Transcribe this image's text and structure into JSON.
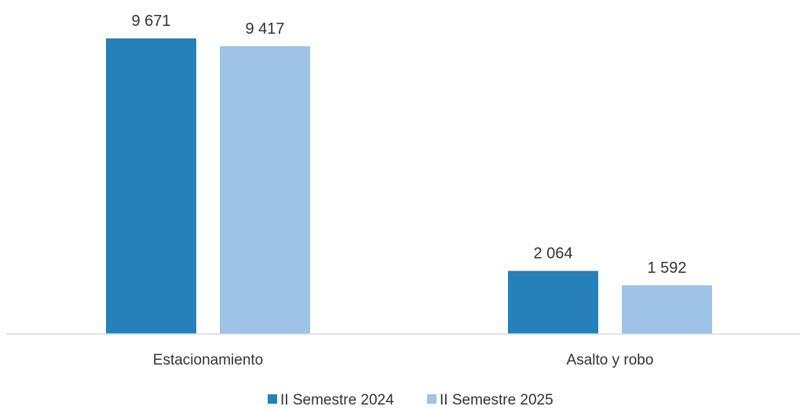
{
  "chart_data": {
    "type": "bar",
    "title": "",
    "xlabel": "",
    "ylabel": "",
    "categories": [
      "Estacionamiento",
      "Asalto y robo"
    ],
    "series": [
      {
        "name": "II Semestre 2024",
        "values": [
          9671,
          2064
        ],
        "labels": [
          "9 671",
          "2 064"
        ],
        "color": "#2680BA"
      },
      {
        "name": "II Semestre 2025",
        "values": [
          9417,
          1592
        ],
        "labels": [
          "9 417",
          "1 592"
        ],
        "color": "#9DC3E6"
      }
    ],
    "ylim": [
      0,
      9671
    ],
    "grid": false,
    "legend_position": "bottom",
    "baseline_color": "#D9D9D9"
  }
}
